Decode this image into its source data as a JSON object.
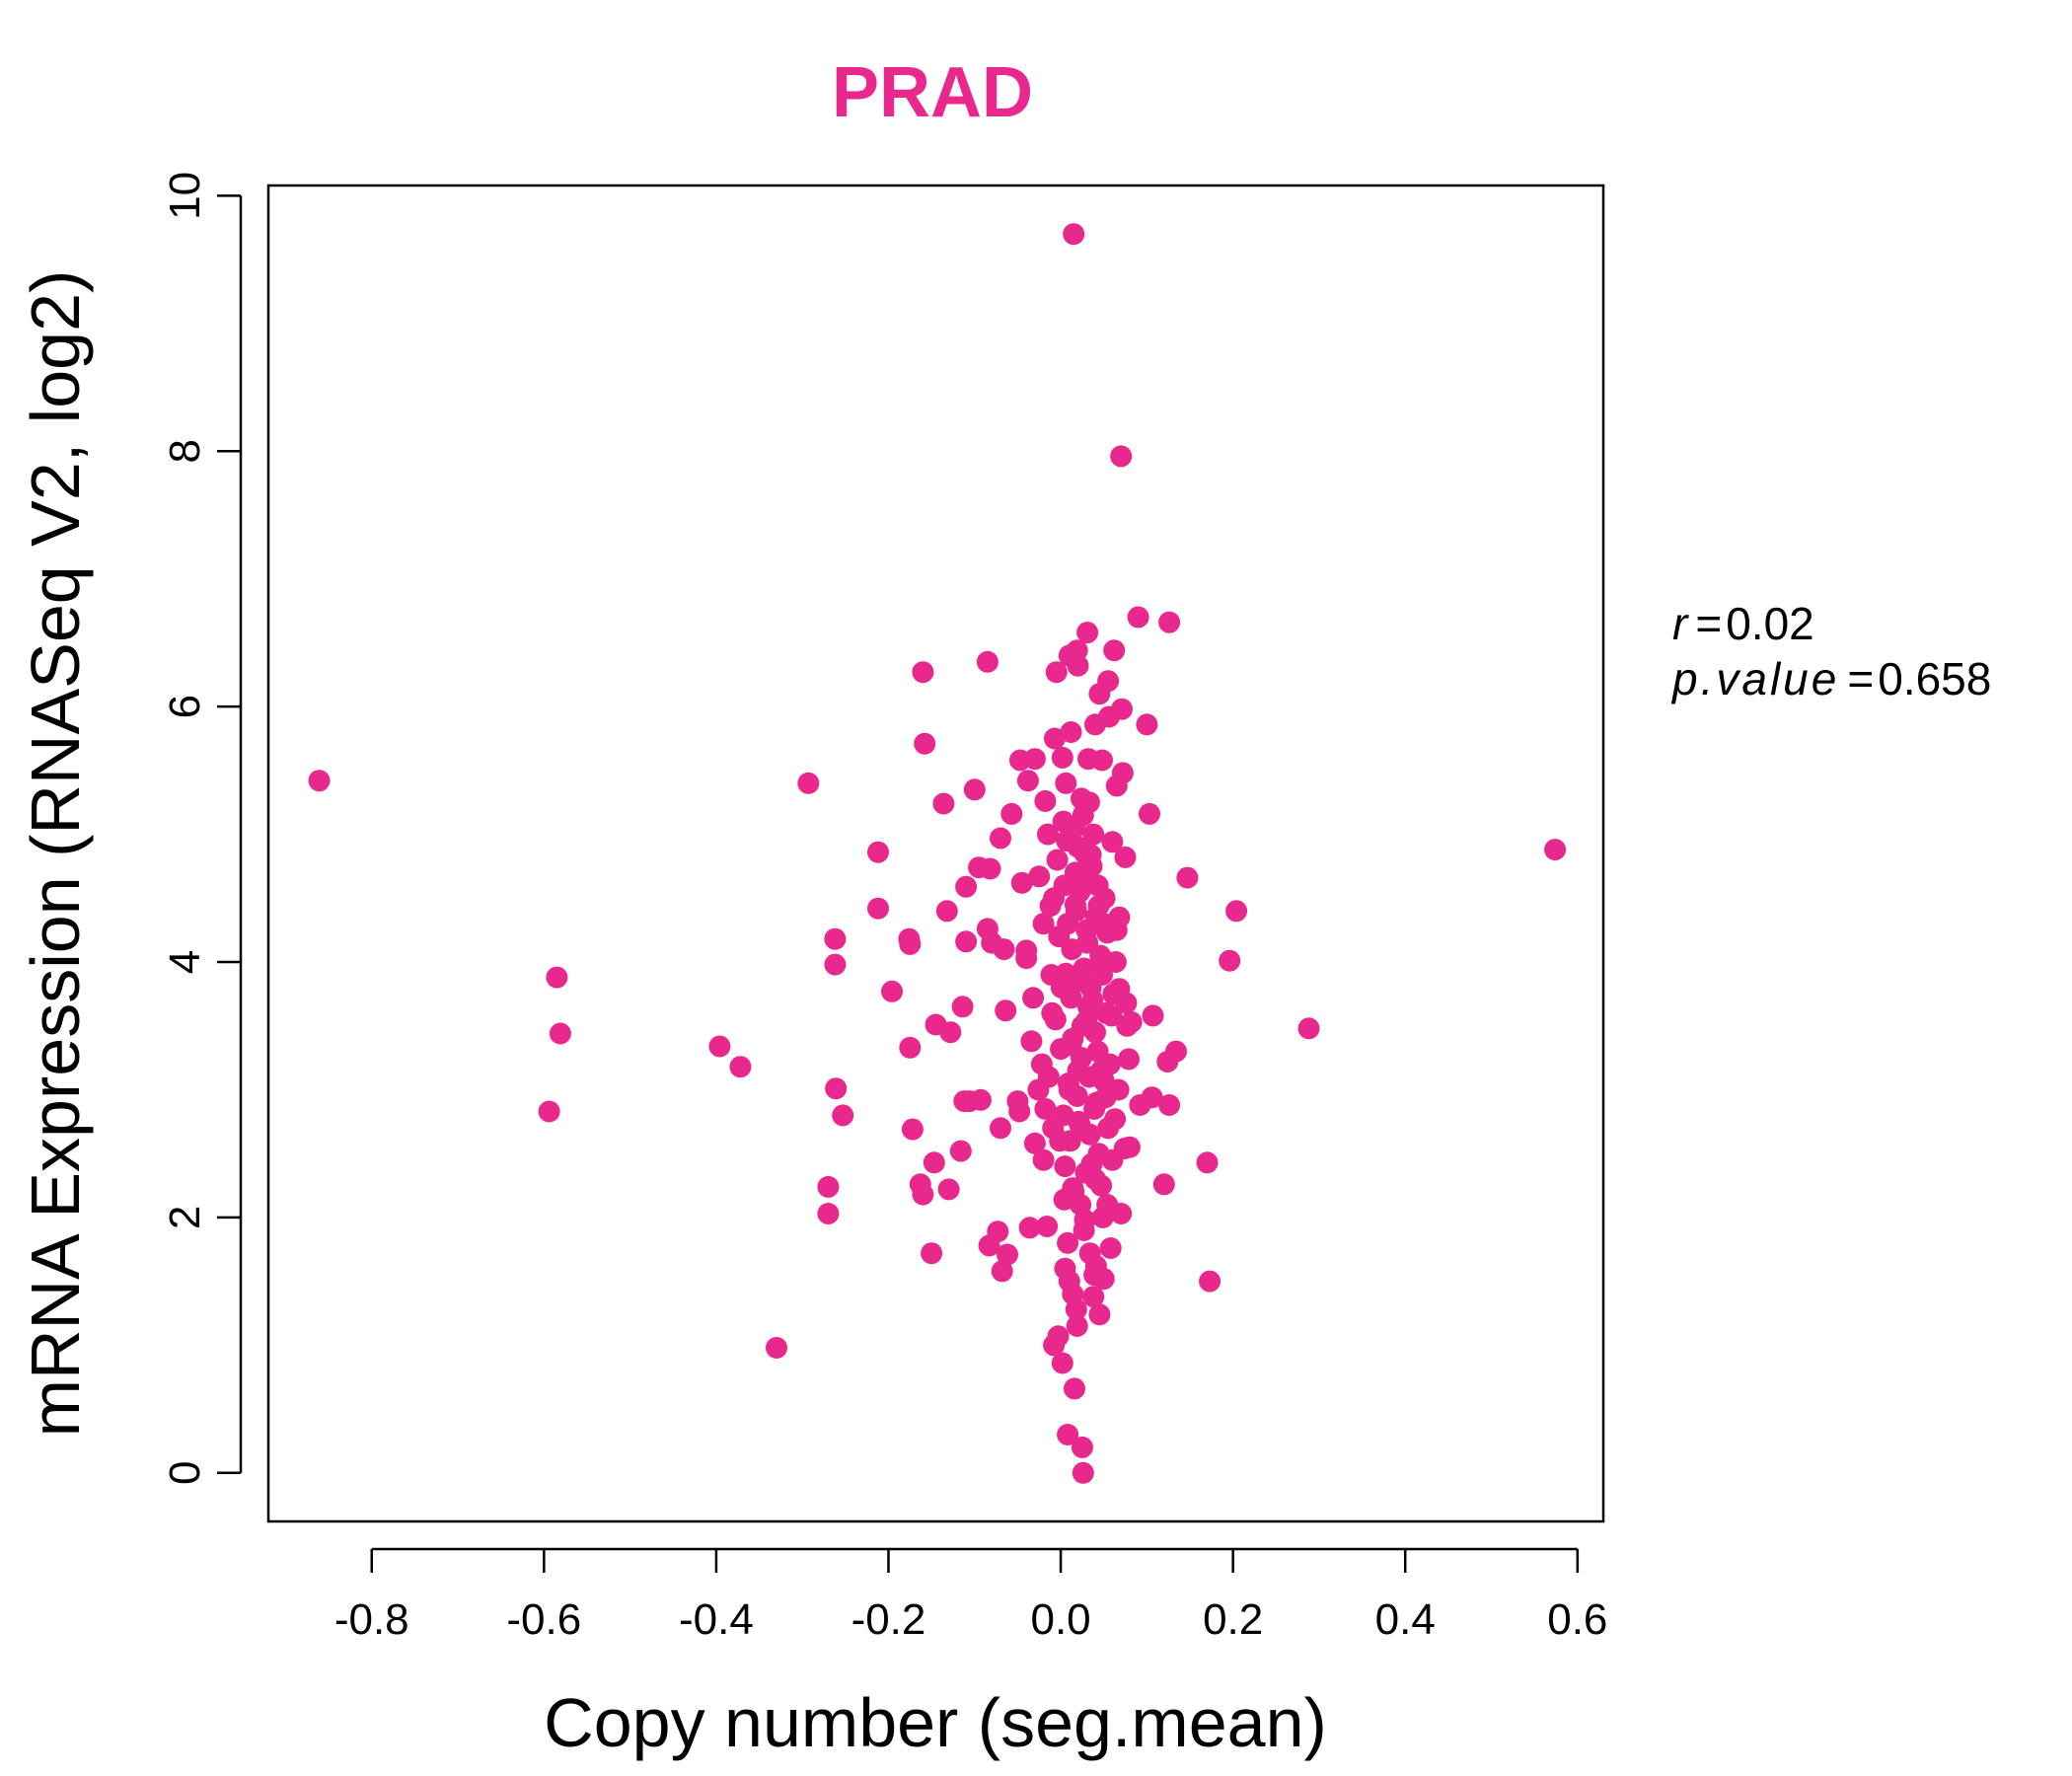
{
  "chart_data": {
    "type": "scatter",
    "title": "PRAD",
    "xlabel": "Copy number (seg.mean)",
    "ylabel": "mRNA Expression (RNASeq V2, log2)",
    "xlim": [
      -0.92,
      0.63
    ],
    "ylim": [
      -0.38,
      10.08
    ],
    "xticks": [
      "-0.8",
      "-0.6",
      "-0.4",
      "-0.2",
      "0.0",
      "0.2",
      "0.4",
      "0.6"
    ],
    "yticks": [
      "0",
      "2",
      "4",
      "6",
      "8",
      "10"
    ],
    "grid": false,
    "legend": "none",
    "annotation": {
      "r_label": "r",
      "r_value": "0.02",
      "p_label": "p.value",
      "p_value": "0.658"
    },
    "color": "#e8288c",
    "points": [
      [
        -0.861,
        5.42
      ],
      [
        -0.585,
        3.88
      ],
      [
        -0.581,
        3.44
      ],
      [
        -0.594,
        2.83
      ],
      [
        -0.396,
        3.34
      ],
      [
        -0.372,
        3.18
      ],
      [
        -0.33,
        0.98
      ],
      [
        -0.293,
        5.4
      ],
      [
        -0.262,
        4.18
      ],
      [
        -0.262,
        3.98
      ],
      [
        -0.261,
        3.01
      ],
      [
        -0.253,
        2.8
      ],
      [
        -0.27,
        2.24
      ],
      [
        -0.27,
        2.03
      ],
      [
        -0.212,
        4.86
      ],
      [
        -0.212,
        4.42
      ],
      [
        -0.196,
        3.77
      ],
      [
        -0.176,
        4.18
      ],
      [
        -0.175,
        4.14
      ],
      [
        -0.175,
        3.33
      ],
      [
        -0.172,
        2.69
      ],
      [
        -0.163,
        2.26
      ],
      [
        -0.16,
        2.18
      ],
      [
        -0.16,
        6.27
      ],
      [
        -0.158,
        5.71
      ],
      [
        -0.15,
        1.72
      ],
      [
        -0.147,
        2.43
      ],
      [
        -0.145,
        3.51
      ],
      [
        -0.136,
        5.24
      ],
      [
        -0.132,
        4.4
      ],
      [
        -0.13,
        2.22
      ],
      [
        -0.128,
        3.45
      ],
      [
        -0.116,
        2.52
      ],
      [
        -0.114,
        3.65
      ],
      [
        -0.112,
        2.91
      ],
      [
        -0.11,
        4.59
      ],
      [
        -0.11,
        4.16
      ],
      [
        -0.106,
        2.91
      ],
      [
        -0.1,
        5.35
      ],
      [
        -0.095,
        4.74
      ],
      [
        -0.093,
        2.92
      ],
      [
        -0.085,
        6.35
      ],
      [
        -0.085,
        4.26
      ],
      [
        -0.083,
        1.78
      ],
      [
        -0.082,
        4.73
      ],
      [
        -0.08,
        4.15
      ],
      [
        -0.073,
        1.89
      ],
      [
        -0.07,
        4.97
      ],
      [
        -0.07,
        2.7
      ],
      [
        -0.068,
        1.58
      ],
      [
        -0.066,
        4.1
      ],
      [
        -0.064,
        3.62
      ],
      [
        -0.062,
        1.71
      ],
      [
        -0.057,
        5.16
      ],
      [
        -0.05,
        2.91
      ],
      [
        -0.048,
        2.83
      ],
      [
        -0.047,
        5.58
      ],
      [
        -0.045,
        4.62
      ],
      [
        -0.04,
        4.09
      ],
      [
        -0.04,
        4.03
      ],
      [
        -0.038,
        5.42
      ],
      [
        -0.036,
        1.92
      ],
      [
        -0.034,
        3.38
      ],
      [
        -0.032,
        3.72
      ],
      [
        -0.03,
        5.59
      ],
      [
        -0.03,
        2.58
      ],
      [
        -0.025,
        4.67
      ],
      [
        -0.022,
        3.2
      ],
      [
        -0.02,
        2.45
      ],
      [
        -0.018,
        5.26
      ],
      [
        -0.016,
        1.93
      ],
      [
        -0.012,
        4.44
      ],
      [
        -0.01,
        3.6
      ],
      [
        -0.008,
        4.5
      ],
      [
        -0.008,
        1.0
      ],
      [
        -0.007,
        5.75
      ],
      [
        -0.005,
        6.27
      ],
      [
        -0.003,
        1.07
      ],
      [
        0.0,
        3.32
      ],
      [
        0.002,
        0.86
      ],
      [
        0.003,
        5.1
      ],
      [
        0.004,
        2.14
      ],
      [
        0.006,
        3.91
      ],
      [
        0.008,
        4.3
      ],
      [
        0.008,
        0.3
      ],
      [
        0.01,
        6.4
      ],
      [
        0.01,
        1.5
      ],
      [
        0.012,
        5.8
      ],
      [
        0.012,
        3.72
      ],
      [
        0.014,
        2.23
      ],
      [
        0.015,
        9.7
      ],
      [
        0.016,
        0.66
      ],
      [
        0.017,
        4.7
      ],
      [
        0.018,
        1.28
      ],
      [
        0.019,
        6.44
      ],
      [
        0.02,
        3.15
      ],
      [
        0.02,
        6.32
      ],
      [
        0.022,
        2.73
      ],
      [
        0.024,
        5.28
      ],
      [
        0.025,
        0.2
      ],
      [
        0.026,
        0.0
      ],
      [
        0.028,
        4.6
      ],
      [
        0.028,
        1.98
      ],
      [
        0.03,
        3.54
      ],
      [
        0.031,
        6.58
      ],
      [
        0.032,
        5.59
      ],
      [
        0.034,
        1.72
      ],
      [
        0.035,
        4.84
      ],
      [
        0.036,
        2.42
      ],
      [
        0.038,
        1.38
      ],
      [
        0.04,
        5.86
      ],
      [
        0.04,
        3.45
      ],
      [
        0.041,
        1.62
      ],
      [
        0.042,
        2.9
      ],
      [
        0.044,
        4.44
      ],
      [
        0.045,
        1.24
      ],
      [
        0.045,
        6.1
      ],
      [
        0.047,
        2.25
      ],
      [
        0.048,
        5.58
      ],
      [
        0.05,
        3.07
      ],
      [
        0.05,
        1.52
      ],
      [
        0.052,
        2.94
      ],
      [
        0.054,
        4.23
      ],
      [
        0.055,
        6.2
      ],
      [
        0.056,
        5.92
      ],
      [
        0.058,
        1.76
      ],
      [
        0.059,
        3.58
      ],
      [
        0.06,
        4.94
      ],
      [
        0.062,
        6.44
      ],
      [
        0.063,
        2.77
      ],
      [
        0.065,
        5.38
      ],
      [
        0.065,
        4.25
      ],
      [
        0.068,
        3.79
      ],
      [
        0.07,
        7.96
      ],
      [
        0.07,
        2.03
      ],
      [
        0.071,
        5.98
      ],
      [
        0.072,
        5.48
      ],
      [
        0.074,
        2.54
      ],
      [
        0.075,
        4.82
      ],
      [
        0.076,
        3.68
      ],
      [
        0.077,
        3.5
      ],
      [
        0.079,
        3.24
      ],
      [
        0.08,
        2.55
      ],
      [
        0.082,
        3.53
      ],
      [
        0.09,
        6.7
      ],
      [
        0.092,
        2.88
      ],
      [
        0.1,
        5.86
      ],
      [
        0.103,
        5.16
      ],
      [
        0.106,
        2.94
      ],
      [
        0.107,
        3.58
      ],
      [
        0.12,
        2.26
      ],
      [
        0.124,
        3.22
      ],
      [
        0.126,
        2.88
      ],
      [
        0.126,
        6.66
      ],
      [
        0.134,
        3.3
      ],
      [
        0.147,
        4.66
      ],
      [
        0.17,
        2.43
      ],
      [
        0.173,
        1.5
      ],
      [
        0.196,
        4.01
      ],
      [
        0.204,
        4.4
      ],
      [
        0.288,
        3.48
      ],
      [
        0.574,
        4.88
      ],
      [
        -0.004,
        4.8
      ],
      [
        -0.002,
        4.2
      ],
      [
        0.001,
        3.8
      ],
      [
        0.003,
        2.8
      ],
      [
        0.005,
        2.4
      ],
      [
        0.006,
        5.4
      ],
      [
        0.007,
        4.95
      ],
      [
        0.009,
        3.05
      ],
      [
        0.011,
        2.6
      ],
      [
        0.013,
        4.1
      ],
      [
        0.014,
        3.4
      ],
      [
        0.016,
        5.05
      ],
      [
        0.018,
        4.4
      ],
      [
        0.019,
        2.95
      ],
      [
        0.021,
        3.85
      ],
      [
        0.022,
        4.55
      ],
      [
        0.023,
        2.1
      ],
      [
        0.024,
        3.25
      ],
      [
        0.026,
        5.15
      ],
      [
        0.027,
        3.95
      ],
      [
        0.029,
        2.35
      ],
      [
        0.031,
        4.15
      ],
      [
        0.033,
        3.1
      ],
      [
        0.034,
        2.65
      ],
      [
        0.036,
        4.75
      ],
      [
        0.037,
        3.7
      ],
      [
        0.039,
        2.85
      ],
      [
        0.041,
        4.35
      ],
      [
        0.043,
        3.3
      ],
      [
        0.044,
        2.5
      ],
      [
        0.046,
        4.05
      ],
      [
        0.048,
        3.9
      ],
      [
        0.049,
        2.0
      ],
      [
        0.051,
        4.5
      ],
      [
        0.053,
        3.6
      ],
      [
        0.055,
        2.7
      ],
      [
        -0.006,
        3.55
      ],
      [
        -0.001,
        2.6
      ],
      [
        0.004,
        4.6
      ],
      [
        0.01,
        3.0
      ],
      [
        0.015,
        2.2
      ],
      [
        0.02,
        4.9
      ],
      [
        0.025,
        3.5
      ],
      [
        0.03,
        4.25
      ],
      [
        0.035,
        3.8
      ],
      [
        0.04,
        2.3
      ],
      [
        0.045,
        3.95
      ],
      [
        0.05,
        4.3
      ],
      [
        -0.014,
        3.1
      ],
      [
        -0.011,
        3.9
      ],
      [
        -0.009,
        2.7
      ],
      [
        0.002,
        5.6
      ],
      [
        0.008,
        1.8
      ],
      [
        0.012,
        3.35
      ],
      [
        0.017,
        4.45
      ],
      [
        0.021,
        2.75
      ],
      [
        0.027,
        1.9
      ],
      [
        0.032,
        3.65
      ],
      [
        0.038,
        5.0
      ],
      [
        0.043,
        4.6
      ],
      [
        0.057,
        3.2
      ],
      [
        0.06,
        2.45
      ],
      [
        0.064,
        4.0
      ],
      [
        0.067,
        3.0
      ],
      [
        -0.02,
        4.3
      ],
      [
        -0.026,
        3.0
      ],
      [
        -0.015,
        5.0
      ],
      [
        -0.018,
        2.85
      ],
      [
        0.005,
        1.6
      ],
      [
        0.014,
        1.4
      ],
      [
        0.019,
        1.15
      ],
      [
        0.028,
        4.85
      ],
      [
        0.033,
        5.25
      ],
      [
        0.039,
        1.55
      ],
      [
        0.047,
        3.15
      ],
      [
        0.054,
        2.1
      ],
      [
        0.061,
        3.75
      ],
      [
        0.068,
        4.35
      ]
    ]
  }
}
